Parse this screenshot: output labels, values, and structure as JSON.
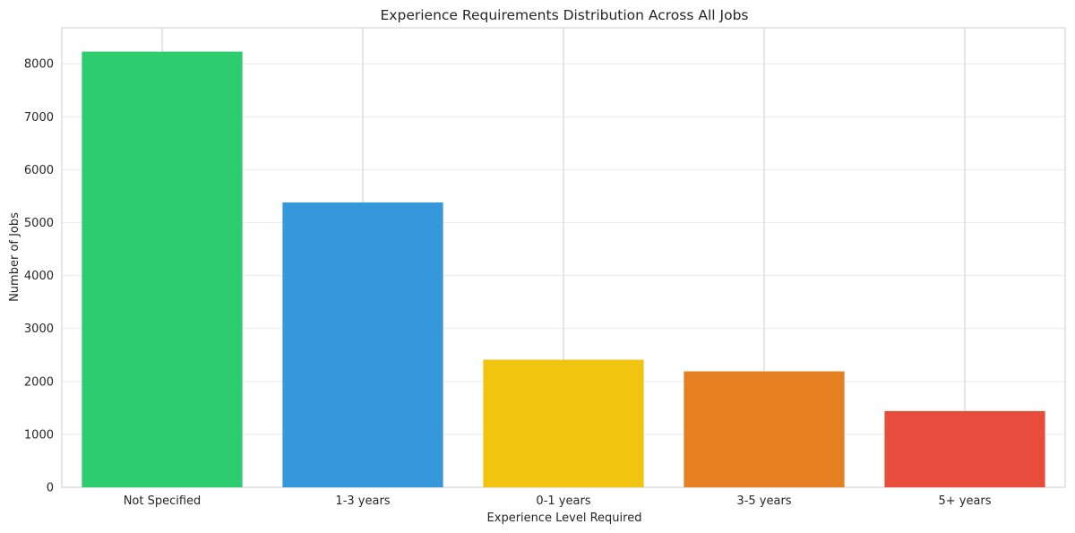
{
  "chart_data": {
    "type": "bar",
    "title": "Experience Requirements Distribution Across All Jobs",
    "xlabel": "Experience Level Required",
    "ylabel": "Number of Jobs",
    "categories": [
      "Not Specified",
      "1-3 years",
      "0-1 years",
      "3-5 years",
      "5+ years"
    ],
    "values": [
      8230,
      5380,
      2410,
      2190,
      1440
    ],
    "colors": [
      "#2ecc71",
      "#3498db",
      "#f1c40f",
      "#e67e22",
      "#e74c3c"
    ],
    "ylim": [
      0,
      8680
    ],
    "yticks": [
      0,
      1000,
      2000,
      3000,
      4000,
      5000,
      6000,
      7000,
      8000
    ],
    "ytick_labels": [
      "0",
      "1000",
      "2000",
      "3000",
      "4000",
      "5000",
      "6000",
      "7000",
      "8000"
    ],
    "grid": true,
    "legend": "none"
  }
}
